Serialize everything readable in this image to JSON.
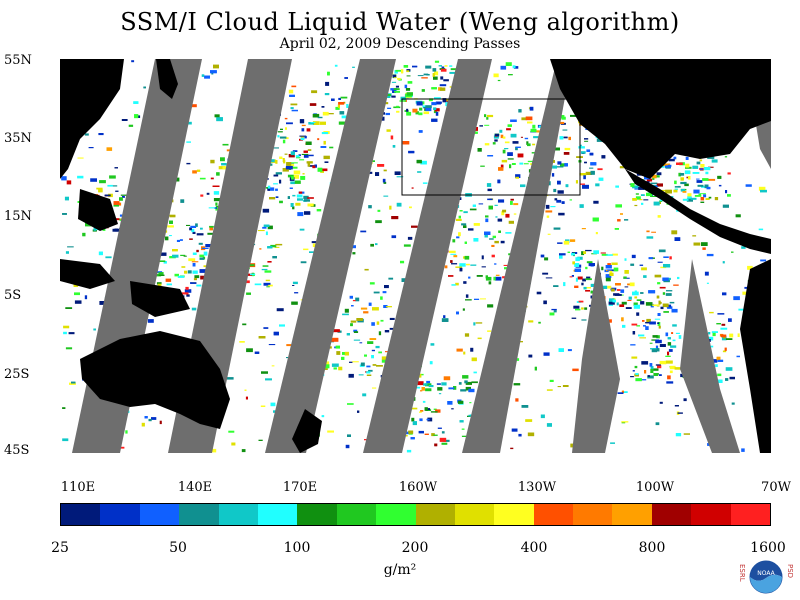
{
  "title": "SSM/I Cloud Liquid Water (Weng algorithm)",
  "subtitle": "April 02, 2009  Descending Passes",
  "map": {
    "lat_labels": [
      "55N",
      "35N",
      "15N",
      "5S",
      "25S",
      "45S"
    ],
    "lon_labels": [
      "110E",
      "140E",
      "170E",
      "160W",
      "130W",
      "100W",
      "70W"
    ]
  },
  "colorbar": {
    "colors": [
      "#001a7a",
      "#0030c8",
      "#1060ff",
      "#109090",
      "#10c8c8",
      "#20ffff",
      "#109010",
      "#20c820",
      "#30ff30",
      "#b0b000",
      "#e0e000",
      "#ffff20",
      "#ff5000",
      "#ff7a00",
      "#ffa000",
      "#a00000",
      "#d00000",
      "#ff2020"
    ],
    "tick_labels": [
      "25",
      "50",
      "100",
      "200",
      "400",
      "800",
      "1600"
    ],
    "units": "g/m²"
  },
  "logo": {
    "left_text": "ESRL",
    "right_text": "PSD",
    "center": "NOAA"
  },
  "colors": {
    "land": "#000000",
    "no_data": "#6e6e6e",
    "ocean_clear": "#ffffff"
  }
}
